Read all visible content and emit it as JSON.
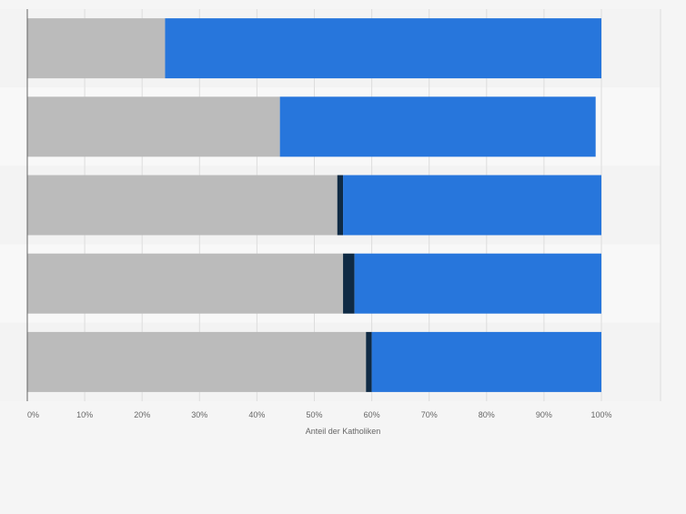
{
  "chart_data": {
    "type": "bar",
    "orientation": "horizontal",
    "stacked": true,
    "categories": [
      "",
      "",
      "",
      "",
      ""
    ],
    "series": [
      {
        "values": [
          24,
          44,
          54,
          55,
          59
        ],
        "color": "#bbbbbb"
      },
      {
        "values": [
          0,
          0,
          1,
          2,
          1
        ],
        "color": "#0f2a44"
      },
      {
        "values": [
          76,
          55,
          45,
          43,
          40
        ],
        "color": "#2776dc"
      }
    ],
    "xlabel": "Anteil der Katholiken",
    "xlim": [
      0,
      100
    ],
    "xticks": [
      "0%",
      "10%",
      "20%",
      "30%",
      "40%",
      "50%",
      "60%",
      "70%",
      "80%",
      "90%",
      "100%"
    ],
    "grid": true,
    "legend": "none"
  }
}
